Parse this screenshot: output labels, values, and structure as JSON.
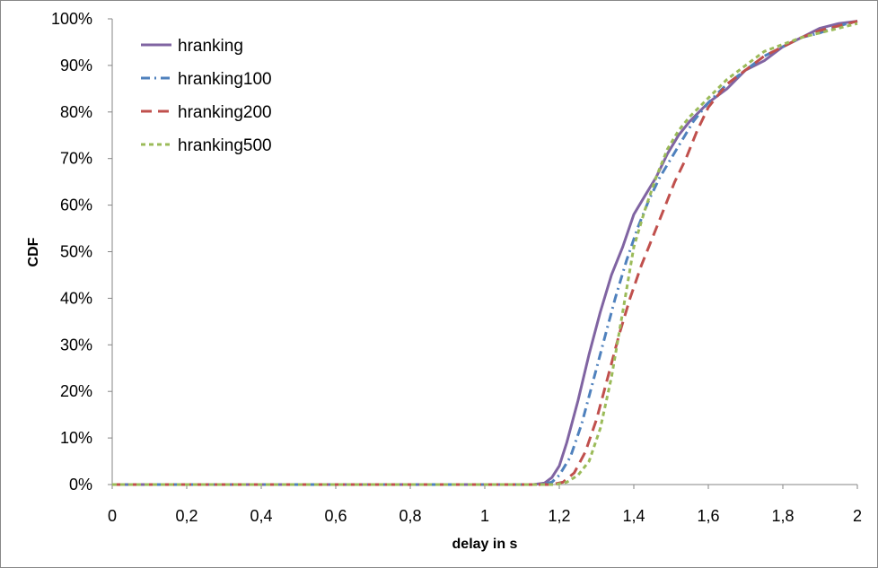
{
  "chart_data": {
    "type": "line",
    "title": "",
    "xlabel": "delay in s",
    "ylabel": "CDF",
    "xlim": [
      0,
      2
    ],
    "ylim": [
      0,
      100
    ],
    "x_ticks": [
      "0",
      "0,2",
      "0,4",
      "0,6",
      "0,8",
      "1",
      "1,2",
      "1,4",
      "1,6",
      "1,8",
      "2"
    ],
    "y_ticks": [
      "0%",
      "10%",
      "20%",
      "30%",
      "40%",
      "50%",
      "60%",
      "70%",
      "80%",
      "90%",
      "100%"
    ],
    "grid": false,
    "legend_position": "top-left",
    "series": [
      {
        "name": "hranking",
        "color": "#8064A2",
        "dash": "solid",
        "points": [
          [
            0,
            0
          ],
          [
            1.13,
            0
          ],
          [
            1.16,
            0.3
          ],
          [
            1.18,
            1.5
          ],
          [
            1.2,
            4
          ],
          [
            1.22,
            9
          ],
          [
            1.25,
            18
          ],
          [
            1.28,
            28
          ],
          [
            1.31,
            37
          ],
          [
            1.34,
            45
          ],
          [
            1.37,
            51
          ],
          [
            1.4,
            58
          ],
          [
            1.43,
            62
          ],
          [
            1.46,
            66
          ],
          [
            1.49,
            71
          ],
          [
            1.52,
            75
          ],
          [
            1.55,
            78
          ],
          [
            1.6,
            82
          ],
          [
            1.65,
            85
          ],
          [
            1.7,
            89
          ],
          [
            1.75,
            91
          ],
          [
            1.8,
            94
          ],
          [
            1.85,
            96
          ],
          [
            1.9,
            98
          ],
          [
            1.95,
            99
          ],
          [
            2,
            99.5
          ]
        ]
      },
      {
        "name": "hranking100",
        "color": "#4F81BD",
        "dash": "dashdot",
        "points": [
          [
            0,
            0
          ],
          [
            1.15,
            0
          ],
          [
            1.18,
            0.5
          ],
          [
            1.2,
            2
          ],
          [
            1.23,
            6
          ],
          [
            1.26,
            13
          ],
          [
            1.29,
            22
          ],
          [
            1.32,
            31
          ],
          [
            1.35,
            40
          ],
          [
            1.38,
            48
          ],
          [
            1.41,
            55
          ],
          [
            1.44,
            61
          ],
          [
            1.47,
            66
          ],
          [
            1.5,
            70
          ],
          [
            1.53,
            74
          ],
          [
            1.56,
            78
          ],
          [
            1.6,
            82
          ],
          [
            1.65,
            86
          ],
          [
            1.7,
            89
          ],
          [
            1.75,
            92
          ],
          [
            1.8,
            94
          ],
          [
            1.85,
            96
          ],
          [
            1.9,
            97
          ],
          [
            1.95,
            98.5
          ],
          [
            2,
            99.5
          ]
        ]
      },
      {
        "name": "hranking200",
        "color": "#C0504D",
        "dash": "dashed",
        "points": [
          [
            0,
            0
          ],
          [
            1.18,
            0
          ],
          [
            1.21,
            0.5
          ],
          [
            1.24,
            2.5
          ],
          [
            1.27,
            7
          ],
          [
            1.3,
            14
          ],
          [
            1.33,
            23
          ],
          [
            1.36,
            32
          ],
          [
            1.39,
            40
          ],
          [
            1.42,
            47
          ],
          [
            1.45,
            53
          ],
          [
            1.48,
            59
          ],
          [
            1.51,
            65
          ],
          [
            1.54,
            70
          ],
          [
            1.57,
            76
          ],
          [
            1.6,
            81
          ],
          [
            1.65,
            86
          ],
          [
            1.7,
            89
          ],
          [
            1.75,
            92
          ],
          [
            1.8,
            94
          ],
          [
            1.85,
            96
          ],
          [
            1.9,
            97.5
          ],
          [
            1.95,
            98.5
          ],
          [
            2,
            99.5
          ]
        ]
      },
      {
        "name": "hranking500",
        "color": "#9BBB59",
        "dash": "dotted",
        "points": [
          [
            0,
            0
          ],
          [
            1.19,
            0
          ],
          [
            1.22,
            0.5
          ],
          [
            1.25,
            2
          ],
          [
            1.28,
            5
          ],
          [
            1.31,
            12
          ],
          [
            1.34,
            23
          ],
          [
            1.37,
            37
          ],
          [
            1.4,
            51
          ],
          [
            1.43,
            59
          ],
          [
            1.46,
            66
          ],
          [
            1.49,
            72
          ],
          [
            1.52,
            76
          ],
          [
            1.55,
            79
          ],
          [
            1.6,
            83
          ],
          [
            1.65,
            87
          ],
          [
            1.7,
            90
          ],
          [
            1.75,
            93
          ],
          [
            1.8,
            94.5
          ],
          [
            1.85,
            96
          ],
          [
            1.9,
            97
          ],
          [
            1.95,
            98
          ],
          [
            2,
            99
          ]
        ]
      }
    ]
  }
}
